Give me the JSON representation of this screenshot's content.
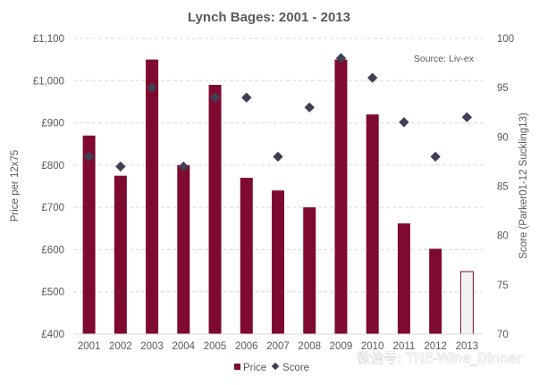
{
  "chart_data": {
    "type": "bar",
    "title": "Lynch Bages: 2001 - 2013",
    "categories": [
      "2001",
      "2002",
      "2003",
      "2004",
      "2005",
      "2006",
      "2007",
      "2008",
      "2009",
      "2010",
      "2011",
      "2012",
      "2013"
    ],
    "series": [
      {
        "name": "Price",
        "type": "bar",
        "axis": "left",
        "values": [
          870,
          775,
          1050,
          800,
          990,
          770,
          740,
          700,
          1050,
          920,
          662,
          602,
          548
        ],
        "color": "#7f0a2f"
      },
      {
        "name": "Score",
        "type": "scatter",
        "axis": "right",
        "values": [
          88,
          87,
          95,
          87,
          94,
          94,
          88,
          93,
          98,
          96,
          91.5,
          88,
          92
        ],
        "color": "#3f3f55"
      }
    ],
    "ylabel": "Price per 12x75",
    "y2label": "Score (Parker01-12  Suckling13)",
    "ylim": [
      400,
      1100
    ],
    "y2lim": [
      70,
      100
    ],
    "yticks": [
      400,
      500,
      600,
      700,
      800,
      900,
      1000,
      1100
    ],
    "ytick_labels": [
      "£400",
      "£500",
      "£600",
      "£700",
      "£800",
      "£900",
      "£1,000",
      "£1,100"
    ],
    "y2ticks": [
      70,
      75,
      80,
      85,
      90,
      95,
      100
    ],
    "y2tick_labels": [
      "70",
      "75",
      "80",
      "85",
      "90",
      "95",
      "100"
    ],
    "last_bar_style": "outlined-light",
    "last_bar_fill": "#f2f2f2",
    "grid": "horizontal-dashed",
    "legend": "bottom-center",
    "annotation": "Source: Liv-ex"
  },
  "watermark_text": "微信号: THE-Wine_Dinner"
}
